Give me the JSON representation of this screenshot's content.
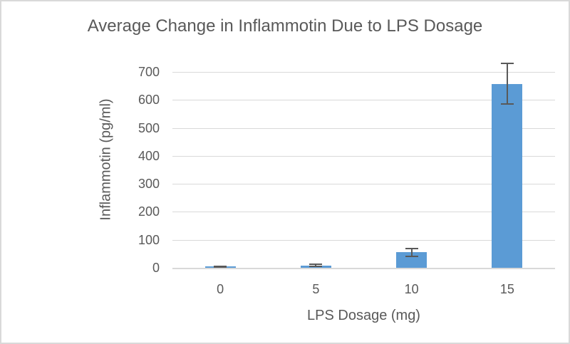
{
  "chart_data": {
    "type": "bar",
    "title": "Average Change in Inflammotin Due to LPS Dosage",
    "xlabel": "LPS Dosage (mg)",
    "ylabel": "Inflammotin (pg/ml)",
    "categories": [
      "0",
      "5",
      "10",
      "15"
    ],
    "values": [
      4,
      8,
      55,
      658
    ],
    "error_bars": [
      2,
      4,
      13,
      72
    ],
    "yticks": [
      0,
      100,
      200,
      300,
      400,
      500,
      600,
      700
    ],
    "ylim": [
      0,
      700
    ],
    "grid": true,
    "legend": false,
    "bar_color": "#5B9BD5",
    "error_color": "#595959",
    "gridline_color": "#D9D9D9",
    "text_color": "#595959",
    "background_color": "#FFFFFF",
    "frame_border_color": "#D9D9D9"
  }
}
